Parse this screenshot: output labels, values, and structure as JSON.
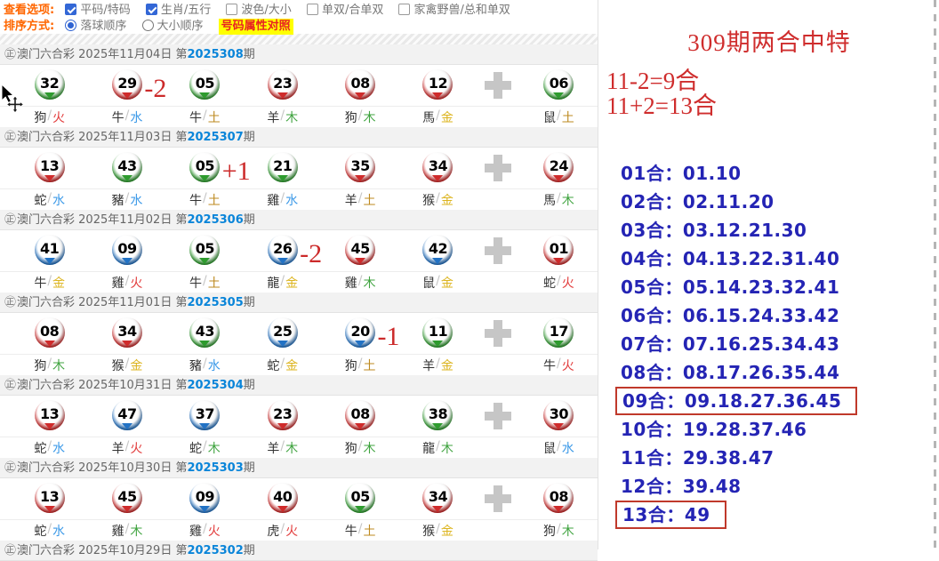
{
  "options_bar": {
    "view_label": "查看选项:",
    "view_options": [
      {
        "label": "平码/特码",
        "checked": true
      },
      {
        "label": "生肖/五行",
        "checked": true
      },
      {
        "label": "波色/大小",
        "checked": false
      },
      {
        "label": "单双/合单双",
        "checked": false
      },
      {
        "label": "家禽野兽/总和单双",
        "checked": false
      }
    ],
    "sort_label": "排序方式:",
    "sort_options": [
      {
        "label": "落球顺序",
        "selected": true
      },
      {
        "label": "大小顺序",
        "selected": false
      }
    ],
    "compare_link": "号码属性对照"
  },
  "draw_header_icon": "㊣",
  "draws": [
    {
      "source": "澳门六合彩",
      "date": "2025年11月04日",
      "period": "2025308",
      "balls": [
        {
          "num": "32",
          "color": "green",
          "zodiac": "狗",
          "element": "火"
        },
        {
          "num": "29",
          "color": "red",
          "zodiac": "牛",
          "element": "水",
          "note": "-2"
        },
        {
          "num": "05",
          "color": "green",
          "zodiac": "牛",
          "element": "土"
        },
        {
          "num": "23",
          "color": "red",
          "zodiac": "羊",
          "element": "木"
        },
        {
          "num": "08",
          "color": "red",
          "zodiac": "狗",
          "element": "木"
        },
        {
          "num": "12",
          "color": "red",
          "zodiac": "馬",
          "element": "金"
        },
        {
          "num": "06",
          "color": "green",
          "zodiac": "鼠",
          "element": "土"
        }
      ]
    },
    {
      "source": "澳门六合彩",
      "date": "2025年11月03日",
      "period": "2025307",
      "balls": [
        {
          "num": "13",
          "color": "red",
          "zodiac": "蛇",
          "element": "水"
        },
        {
          "num": "43",
          "color": "green",
          "zodiac": "豬",
          "element": "水"
        },
        {
          "num": "05",
          "color": "green",
          "zodiac": "牛",
          "element": "土",
          "note": "+1"
        },
        {
          "num": "21",
          "color": "green",
          "zodiac": "雞",
          "element": "水"
        },
        {
          "num": "35",
          "color": "red",
          "zodiac": "羊",
          "element": "土"
        },
        {
          "num": "34",
          "color": "red",
          "zodiac": "猴",
          "element": "金"
        },
        {
          "num": "24",
          "color": "red",
          "zodiac": "馬",
          "element": "木"
        }
      ]
    },
    {
      "source": "澳门六合彩",
      "date": "2025年11月02日",
      "period": "2025306",
      "balls": [
        {
          "num": "41",
          "color": "blue",
          "zodiac": "牛",
          "element": "金"
        },
        {
          "num": "09",
          "color": "blue",
          "zodiac": "雞",
          "element": "火"
        },
        {
          "num": "05",
          "color": "green",
          "zodiac": "牛",
          "element": "土"
        },
        {
          "num": "26",
          "color": "blue",
          "zodiac": "龍",
          "element": "金",
          "note": "-2"
        },
        {
          "num": "45",
          "color": "red",
          "zodiac": "雞",
          "element": "木"
        },
        {
          "num": "42",
          "color": "blue",
          "zodiac": "鼠",
          "element": "金"
        },
        {
          "num": "01",
          "color": "red",
          "zodiac": "蛇",
          "element": "火"
        }
      ]
    },
    {
      "source": "澳门六合彩",
      "date": "2025年11月01日",
      "period": "2025305",
      "balls": [
        {
          "num": "08",
          "color": "red",
          "zodiac": "狗",
          "element": "木"
        },
        {
          "num": "34",
          "color": "red",
          "zodiac": "猴",
          "element": "金"
        },
        {
          "num": "43",
          "color": "green",
          "zodiac": "豬",
          "element": "水"
        },
        {
          "num": "25",
          "color": "blue",
          "zodiac": "蛇",
          "element": "金"
        },
        {
          "num": "20",
          "color": "blue",
          "zodiac": "狗",
          "element": "土",
          "note": "-1"
        },
        {
          "num": "11",
          "color": "green",
          "zodiac": "羊",
          "element": "金"
        },
        {
          "num": "17",
          "color": "green",
          "zodiac": "牛",
          "element": "火"
        }
      ]
    },
    {
      "source": "澳门六合彩",
      "date": "2025年10月31日",
      "period": "2025304",
      "balls": [
        {
          "num": "13",
          "color": "red",
          "zodiac": "蛇",
          "element": "水"
        },
        {
          "num": "47",
          "color": "blue",
          "zodiac": "羊",
          "element": "火"
        },
        {
          "num": "37",
          "color": "blue",
          "zodiac": "蛇",
          "element": "木"
        },
        {
          "num": "23",
          "color": "red",
          "zodiac": "羊",
          "element": "木"
        },
        {
          "num": "08",
          "color": "red",
          "zodiac": "狗",
          "element": "木"
        },
        {
          "num": "38",
          "color": "green",
          "zodiac": "龍",
          "element": "木"
        },
        {
          "num": "30",
          "color": "red",
          "zodiac": "鼠",
          "element": "水"
        }
      ]
    },
    {
      "source": "澳门六合彩",
      "date": "2025年10月30日",
      "period": "2025303",
      "balls": [
        {
          "num": "13",
          "color": "red",
          "zodiac": "蛇",
          "element": "水"
        },
        {
          "num": "45",
          "color": "red",
          "zodiac": "雞",
          "element": "木"
        },
        {
          "num": "09",
          "color": "blue",
          "zodiac": "雞",
          "element": "火"
        },
        {
          "num": "40",
          "color": "red",
          "zodiac": "虎",
          "element": "火"
        },
        {
          "num": "05",
          "color": "green",
          "zodiac": "牛",
          "element": "土"
        },
        {
          "num": "34",
          "color": "red",
          "zodiac": "猴",
          "element": "金"
        },
        {
          "num": "08",
          "color": "red",
          "zodiac": "狗",
          "element": "木"
        }
      ]
    },
    {
      "source": "澳门六合彩",
      "date": "2025年10月29日",
      "period": "2025302",
      "balls": []
    }
  ],
  "right_panel": {
    "title": "309期两合中特",
    "formulas": [
      "11-2=9合",
      "11+2=13合"
    ],
    "list": [
      {
        "text": "01合：01.10",
        "boxed": false
      },
      {
        "text": "02合：02.11.20",
        "boxed": false
      },
      {
        "text": "03合：03.12.21.30",
        "boxed": false
      },
      {
        "text": "04合：04.13.22.31.40",
        "boxed": false
      },
      {
        "text": "05合：05.14.23.32.41",
        "boxed": false
      },
      {
        "text": "06合：06.15.24.33.42",
        "boxed": false
      },
      {
        "text": "07合：07.16.25.34.43",
        "boxed": false
      },
      {
        "text": "08合：08.17.26.35.44",
        "boxed": false
      },
      {
        "text": "09合：09.18.27.36.45",
        "boxed": true
      },
      {
        "text": "10合：19.28.37.46",
        "boxed": false
      },
      {
        "text": "11合：29.38.47",
        "boxed": false
      },
      {
        "text": "12合：39.48",
        "boxed": false
      },
      {
        "text": "13合：49",
        "boxed": true
      }
    ]
  },
  "colors": {
    "ball": {
      "red": "#cf2b2b",
      "green": "#2e9b2e",
      "blue": "#2272c4"
    },
    "element": {
      "火": "#e23b3b",
      "水": "#3d9ae8",
      "土": "#bd8a1f",
      "木": "#3fa33f",
      "金": "#dcb41e"
    },
    "accent_red": "#cf2d2d",
    "list_blue": "#2424b4",
    "period_blue": "#0a85d9"
  }
}
